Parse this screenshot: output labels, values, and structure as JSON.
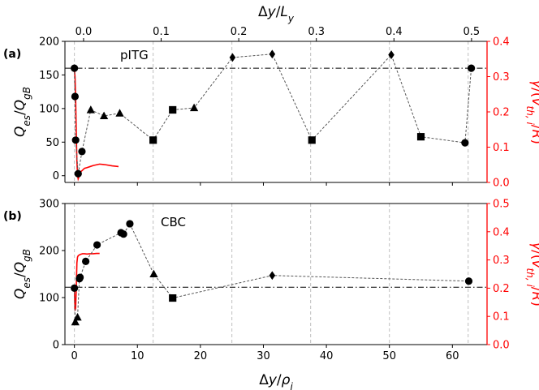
{
  "chart_data": [
    {
      "id": "a",
      "type": "scatter",
      "panel_label": "(a)",
      "annotation": "pITG",
      "xlabel_bottom": "",
      "xlabel_top": "Δy/L_y",
      "xlim": [
        -1.5,
        65.5
      ],
      "top_xlim": [
        -0.024,
        0.52
      ],
      "top_ticks": [
        0.0,
        0.1,
        0.2,
        0.3,
        0.4,
        0.5
      ],
      "top_tick_labels": [
        "0.0",
        "0.1",
        "0.2",
        "0.3",
        "0.4",
        "0.5"
      ],
      "bottom_ticks": [
        0,
        10,
        20,
        30,
        40,
        50,
        60
      ],
      "bottom_tick_labels": [],
      "ylabel_left": "Q_es/Q_gB",
      "ylim_left": [
        -10,
        200
      ],
      "yticks_left": [
        0,
        50,
        100,
        150,
        200
      ],
      "yticks_left_labels": [
        "0",
        "50",
        "100",
        "150",
        "200"
      ],
      "ylabel_right": "γ/(v_th,i/R)",
      "ylim_right": [
        0,
        0.4
      ],
      "yticks_right": [
        0.0,
        0.1,
        0.2,
        0.3,
        0.4
      ],
      "yticks_right_labels": [
        "0.0",
        "0.1",
        "0.2",
        "0.3",
        "0.4"
      ],
      "vlines": [
        0,
        12.5,
        25,
        37.5,
        50,
        62.5
      ],
      "hline": 160,
      "series": [
        {
          "name": "Q_es",
          "color": "#333333",
          "points": [
            {
              "x": 0.0,
              "y": 160,
              "marker": "circle"
            },
            {
              "x": 0.1,
              "y": 118,
              "marker": "circle"
            },
            {
              "x": 0.2,
              "y": 53,
              "marker": "circle"
            },
            {
              "x": 0.6,
              "y": 3,
              "marker": "circle"
            },
            {
              "x": 1.2,
              "y": 36,
              "marker": "circle"
            },
            {
              "x": 2.6,
              "y": 98,
              "marker": "triangle"
            },
            {
              "x": 4.7,
              "y": 89,
              "marker": "triangle"
            },
            {
              "x": 7.2,
              "y": 93,
              "marker": "triangle"
            },
            {
              "x": 12.5,
              "y": 53,
              "marker": "square"
            },
            {
              "x": 15.6,
              "y": 98,
              "marker": "square"
            },
            {
              "x": 19.0,
              "y": 101,
              "marker": "triangle"
            },
            {
              "x": 25.1,
              "y": 176,
              "marker": "diamond"
            },
            {
              "x": 31.4,
              "y": 181,
              "marker": "diamond"
            },
            {
              "x": 37.7,
              "y": 53,
              "marker": "square"
            },
            {
              "x": 50.3,
              "y": 180,
              "marker": "diamond"
            },
            {
              "x": 55.0,
              "y": 58,
              "marker": "square"
            },
            {
              "x": 62.0,
              "y": 49,
              "marker": "circle"
            },
            {
              "x": 63.0,
              "y": 160,
              "marker": "circle"
            }
          ]
        },
        {
          "name": "growth rate γ",
          "color": "#ff0000",
          "axis": "right",
          "x": [
            0.0,
            0.1,
            0.2,
            0.3,
            0.4,
            0.5,
            0.6,
            0.8,
            1.0,
            1.3,
            1.6,
            2.0,
            2.5,
            3.0,
            4.0,
            5.0,
            6.0,
            7.0
          ],
          "y": [
            0.32,
            0.3,
            0.24,
            0.14,
            0.06,
            0.02,
            0.01,
            0.02,
            0.03,
            0.035,
            0.04,
            0.042,
            0.045,
            0.048,
            0.052,
            0.05,
            0.047,
            0.045
          ]
        }
      ]
    },
    {
      "id": "b",
      "type": "scatter",
      "panel_label": "(b)",
      "annotation": "CBC",
      "xlabel_bottom": "Δy/ρ_i",
      "xlim": [
        -1.5,
        65.5
      ],
      "bottom_ticks": [
        0,
        10,
        20,
        30,
        40,
        50,
        60
      ],
      "bottom_tick_labels": [
        "0",
        "10",
        "20",
        "30",
        "40",
        "50",
        "60"
      ],
      "ylabel_left": "Q_es/Q_gB",
      "ylim_left": [
        0,
        300
      ],
      "yticks_left": [
        0,
        100,
        200,
        300
      ],
      "yticks_left_labels": [
        "0",
        "100",
        "200",
        "300"
      ],
      "ylabel_right": "γ/(v_th,i/R)",
      "ylim_right": [
        0,
        0.5
      ],
      "yticks_right": [
        0.0,
        0.1,
        0.2,
        0.3,
        0.4,
        0.5
      ],
      "yticks_right_labels": [
        "0.0",
        "0.1",
        "0.2",
        "0.3",
        "0.4",
        "0.5"
      ],
      "vlines": [
        0,
        12.5,
        25,
        37.5,
        50,
        62.5
      ],
      "hline": 122,
      "series": [
        {
          "name": "Q_es",
          "color": "#333333",
          "points": [
            {
              "x": 0.0,
              "y": 120,
              "marker": "circle"
            },
            {
              "x": 0.15,
              "y": 48,
              "marker": "triangle"
            },
            {
              "x": 0.5,
              "y": 58,
              "marker": "triangle"
            },
            {
              "x": 0.8,
              "y": 140,
              "marker": "circle"
            },
            {
              "x": 0.9,
              "y": 143,
              "marker": "circle"
            },
            {
              "x": 1.8,
              "y": 177,
              "marker": "circle"
            },
            {
              "x": 3.6,
              "y": 212,
              "marker": "circle"
            },
            {
              "x": 7.4,
              "y": 238,
              "marker": "circle"
            },
            {
              "x": 7.8,
              "y": 235,
              "marker": "circle"
            },
            {
              "x": 8.8,
              "y": 257,
              "marker": "circle"
            },
            {
              "x": 12.6,
              "y": 150,
              "marker": "triangle"
            },
            {
              "x": 15.6,
              "y": 99,
              "marker": "square"
            },
            {
              "x": 31.4,
              "y": 147,
              "marker": "diamond"
            },
            {
              "x": 62.6,
              "y": 135,
              "marker": "circle"
            }
          ]
        },
        {
          "name": "growth rate γ",
          "color": "#ff0000",
          "axis": "right",
          "x": [
            0.0,
            0.1,
            0.2,
            0.3,
            0.4,
            0.5,
            0.6,
            0.8,
            1.0,
            1.3,
            1.6,
            2.0,
            2.5,
            3.0,
            3.5,
            4.0
          ],
          "y": [
            0.2,
            0.12,
            0.13,
            0.2,
            0.29,
            0.31,
            0.315,
            0.318,
            0.32,
            0.322,
            0.322,
            0.321,
            0.322,
            0.322,
            0.323,
            0.323
          ]
        }
      ]
    }
  ]
}
